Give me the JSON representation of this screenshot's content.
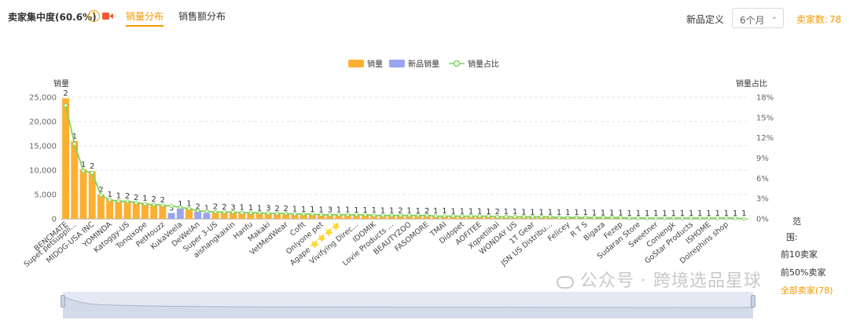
{
  "header": {
    "title": "卖家集中度(60.6%)",
    "help_glyph": "?",
    "tabs": [
      {
        "label": "销量分布",
        "active": true
      },
      {
        "label": "销售额分布",
        "active": false
      }
    ],
    "new_def_label": "新品定义",
    "new_def_value": "6个月",
    "seller_count_label": "卖家数:",
    "seller_count_value": "78"
  },
  "colors": {
    "accent": "#f39800",
    "bar_sales": "#fbb034",
    "bar_new": "#9aa5f0",
    "line_share": "#7ed35a"
  },
  "range": {
    "title_a": "范",
    "title_b": "围:",
    "options": [
      {
        "label": "前10卖家",
        "selected": false
      },
      {
        "label": "前50%卖家",
        "selected": false
      },
      {
        "label": "全部卖家(78)",
        "selected": true
      }
    ]
  },
  "watermark": "公众号 · 跨境选品星球",
  "chart_data": {
    "type": "bar",
    "legend": [
      "销量",
      "新品销量",
      "销量占比"
    ],
    "legend_position": "top-center",
    "ylabel": "销量",
    "y2label": "销量占比",
    "ylim": [
      0,
      25000
    ],
    "y2lim": [
      0,
      18
    ],
    "yticks": [
      "0",
      "5,000",
      "10,000",
      "15,000",
      "20,000",
      "25,000"
    ],
    "y2ticks": [
      "0%",
      "3%",
      "6%",
      "9%",
      "12%",
      "15%",
      "18%"
    ],
    "grid": true,
    "categories": [
      "BENCMATE",
      "Supet petsuppli...",
      "",
      "MIDOG-USA INC",
      "",
      "YOMINDA",
      "",
      "Katoggy-US",
      "",
      "Tonqixope",
      "",
      "PetHouzz",
      "",
      "KukaVeela",
      "",
      "DeWelAn",
      "",
      "Super 3-US",
      "",
      "aishangkaixin",
      "",
      "Hanfu",
      "",
      "Makaki",
      "",
      "VetMedWear",
      "",
      "Cofit",
      "",
      "Onlyone pet",
      "",
      "Agape ⭐⭐⭐⭐",
      "",
      "Vivifying Direc...",
      "",
      "IDOMIK",
      "",
      "Lovie Products ...",
      "",
      "BEAUTYZOO",
      "",
      "FASOMORE",
      "",
      "TMAI",
      "",
      "Didopet",
      "",
      "AOFITEE",
      "",
      "Xqpetlihai",
      "",
      "WONDAY US",
      "",
      "1T Gear",
      "",
      "JSN US Distribu...",
      "",
      "Felicey",
      "",
      "R T S",
      "",
      "Bigaza",
      "",
      "Fezep",
      "",
      "Sudaran Store",
      "",
      "Sweetner",
      "",
      "Coniengk",
      "",
      "GoStar Products",
      "",
      "ISHOME",
      "",
      "Dolrephins shop",
      "",
      ""
    ],
    "series": [
      {
        "name": "销量",
        "values": [
          24800,
          16000,
          10200,
          9800,
          5000,
          4000,
          3800,
          3700,
          3400,
          3200,
          3100,
          2900,
          2800,
          2400,
          2200,
          1700,
          1600,
          1500,
          1450,
          1400,
          1350,
          1300,
          1250,
          1200,
          1150,
          1100,
          1050,
          1000,
          950,
          920,
          900,
          870,
          850,
          820,
          800,
          780,
          760,
          740,
          720,
          700,
          680,
          660,
          640,
          620,
          600,
          580,
          560,
          540,
          520,
          500,
          480,
          460,
          440,
          420,
          400,
          380,
          360,
          340,
          320,
          300,
          280,
          260,
          240,
          220,
          200,
          190,
          180,
          170,
          160,
          150,
          140,
          130,
          120,
          110,
          100,
          90,
          80,
          70
        ]
      },
      {
        "name": "新品销量",
        "values": [
          0,
          0,
          0,
          0,
          0,
          0,
          0,
          0,
          0,
          0,
          0,
          0,
          1200,
          2100,
          0,
          1500,
          1200,
          0,
          0,
          0,
          0,
          0,
          0,
          0,
          0,
          0,
          0,
          0,
          0,
          0,
          0,
          0,
          0,
          0,
          0,
          0,
          0,
          0,
          0,
          0,
          0,
          0,
          0,
          0,
          0,
          0,
          0,
          0,
          0,
          0,
          0,
          0,
          0,
          0,
          0,
          0,
          0,
          0,
          0,
          0,
          0,
          0,
          0,
          0,
          0,
          0,
          0,
          0,
          0,
          0,
          0,
          0,
          0,
          0,
          0,
          0,
          0,
          0
        ]
      },
      {
        "name": "销量占比",
        "values": [
          16.8,
          11.1,
          7.1,
          6.8,
          3.5,
          2.8,
          2.6,
          2.6,
          2.4,
          2.2,
          2.1,
          2.0,
          1.9,
          1.7,
          1.5,
          1.2,
          1.1,
          1.0,
          1.0,
          1.0,
          0.9,
          0.9,
          0.9,
          0.8,
          0.8,
          0.8,
          0.7,
          0.7,
          0.7,
          0.6,
          0.6,
          0.6,
          0.6,
          0.6,
          0.6,
          0.5,
          0.5,
          0.5,
          0.5,
          0.5,
          0.5,
          0.5,
          0.4,
          0.4,
          0.4,
          0.4,
          0.4,
          0.4,
          0.4,
          0.3,
          0.3,
          0.3,
          0.3,
          0.3,
          0.3,
          0.3,
          0.2,
          0.2,
          0.2,
          0.2,
          0.2,
          0.2,
          0.2,
          0.2,
          0.1,
          0.1,
          0.1,
          0.1,
          0.1,
          0.1,
          0.1,
          0.1,
          0.1,
          0.1,
          0.1,
          0.1,
          0.1,
          0.0
        ]
      }
    ],
    "bar_labels": [
      "2",
      "1",
      "1",
      "2",
      "2",
      "1",
      "1",
      "2",
      "2",
      "1",
      "2",
      "2",
      "3",
      "1",
      "1",
      "2",
      "1",
      "2",
      "2",
      "3",
      "1",
      "1",
      "1",
      "3",
      "2",
      "2",
      "1",
      "1",
      "1",
      "1",
      "3",
      "1",
      "1",
      "1",
      "1",
      "1",
      "1",
      "1",
      "2",
      "1",
      "1",
      "2",
      "1",
      "1",
      "1",
      "1",
      "1",
      "1",
      "1",
      "2",
      "1",
      "1",
      "1",
      "1",
      "1",
      "1",
      "1",
      "1",
      "1",
      "1",
      "1",
      "1",
      "1",
      "1",
      "1",
      "1",
      "1",
      "1",
      "1",
      "1",
      "1",
      "1",
      "1",
      "1",
      "1",
      "1",
      "1",
      "1"
    ]
  }
}
